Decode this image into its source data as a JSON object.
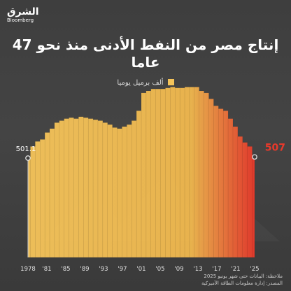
{
  "brand": {
    "logo_ar": "الشرق",
    "logo_en": "Bloomberg"
  },
  "title": "إنتاج مصر من النفط الأدنى منذ نحو 47 عاما",
  "legend": {
    "label": "ألف برميل يوميا",
    "color": "#f5c45a"
  },
  "colors": {
    "bar_start": "#f5c45a",
    "bar_end": "#e8392b",
    "highlight": "#e8392b"
  },
  "notes": {
    "note": "ملاحظة: البيانات حتى شهر يونيو 2025",
    "source": "المصدر: إدارة معلومات الطاقة الأميركية"
  },
  "chart_data": {
    "type": "bar",
    "unit": "ألف برميل يوميا",
    "x_ticks": [
      "1978",
      "'81",
      "'85",
      "'89",
      "'93",
      "'97",
      "'01",
      "'05",
      "'09",
      "'13",
      "'17",
      "'21",
      "'25"
    ],
    "ylim": [
      0,
      900
    ],
    "start_label": "501.1",
    "end_label": "507",
    "series": [
      {
        "x": [
          "1978",
          "1979",
          "1980",
          "1981",
          "1982",
          "1983",
          "1984",
          "1985",
          "1986",
          "1987",
          "1988",
          "1989",
          "1990",
          "1991",
          "1992",
          "1993",
          "1994",
          "1995",
          "1996",
          "1997",
          "1998",
          "1999",
          "2000",
          "2001",
          "2002",
          "2003",
          "2004",
          "2005",
          "2006",
          "2007",
          "2008",
          "2009",
          "2010",
          "2011",
          "2012",
          "2013",
          "2014",
          "2015",
          "2016",
          "2017",
          "2018",
          "2019",
          "2020",
          "2021",
          "2022",
          "2023",
          "2024",
          "2025"
        ],
        "values": [
          501.1,
          560,
          585,
          595,
          630,
          650,
          680,
          690,
          700,
          705,
          700,
          710,
          705,
          700,
          695,
          690,
          680,
          670,
          655,
          650,
          660,
          670,
          690,
          740,
          830,
          840,
          850,
          850,
          850,
          855,
          860,
          855,
          855,
          860,
          860,
          860,
          840,
          830,
          800,
          765,
          750,
          740,
          700,
          660,
          610,
          580,
          560,
          507
        ]
      }
    ]
  }
}
